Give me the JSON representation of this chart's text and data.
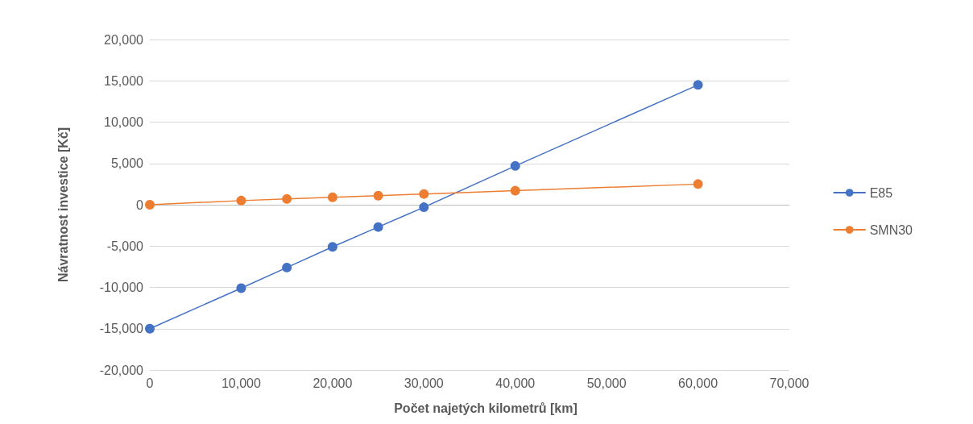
{
  "chart_data": {
    "type": "line",
    "xlabel": "Počet najetých kilometrů [km]",
    "ylabel": "Návratnost investice [Kč]",
    "x": [
      0,
      10000,
      15000,
      20000,
      25000,
      30000,
      40000,
      60000
    ],
    "series": [
      {
        "name": "E85",
        "color": "#4472c4",
        "values": [
          -15000,
          -10100,
          -7600,
          -5100,
          -2700,
          -300,
          4700,
          14500
        ]
      },
      {
        "name": "SMN30",
        "color": "#ed7d31",
        "values": [
          0,
          500,
          700,
          900,
          1100,
          1300,
          1700,
          2500
        ]
      }
    ],
    "xlim": [
      0,
      70000
    ],
    "xticks": [
      0,
      {
        "value": 10000,
        "label": "10,000"
      },
      {
        "value": 20000,
        "label": "20,000"
      },
      {
        "value": 30000,
        "label": "30,000"
      },
      {
        "value": 40000,
        "label": "40,000"
      },
      {
        "value": 50000,
        "label": "50,000"
      },
      {
        "value": 60000,
        "label": "60,000"
      },
      {
        "value": 70000,
        "label": "70,000"
      }
    ],
    "ylim": [
      -20000,
      20000
    ],
    "yticks": [
      {
        "value": -20000,
        "label": "-20,000"
      },
      {
        "value": -15000,
        "label": "-15,000"
      },
      {
        "value": -10000,
        "label": "-10,000"
      },
      {
        "value": -5000,
        "label": "-5,000"
      },
      0,
      {
        "value": 5000,
        "label": "5,000"
      },
      {
        "value": 10000,
        "label": "10,000"
      },
      {
        "value": 15000,
        "label": "15,000"
      },
      {
        "value": 20000,
        "label": "20,000"
      }
    ],
    "grid": "y",
    "legend": "right",
    "marker": "circle",
    "line_style": "solid"
  }
}
